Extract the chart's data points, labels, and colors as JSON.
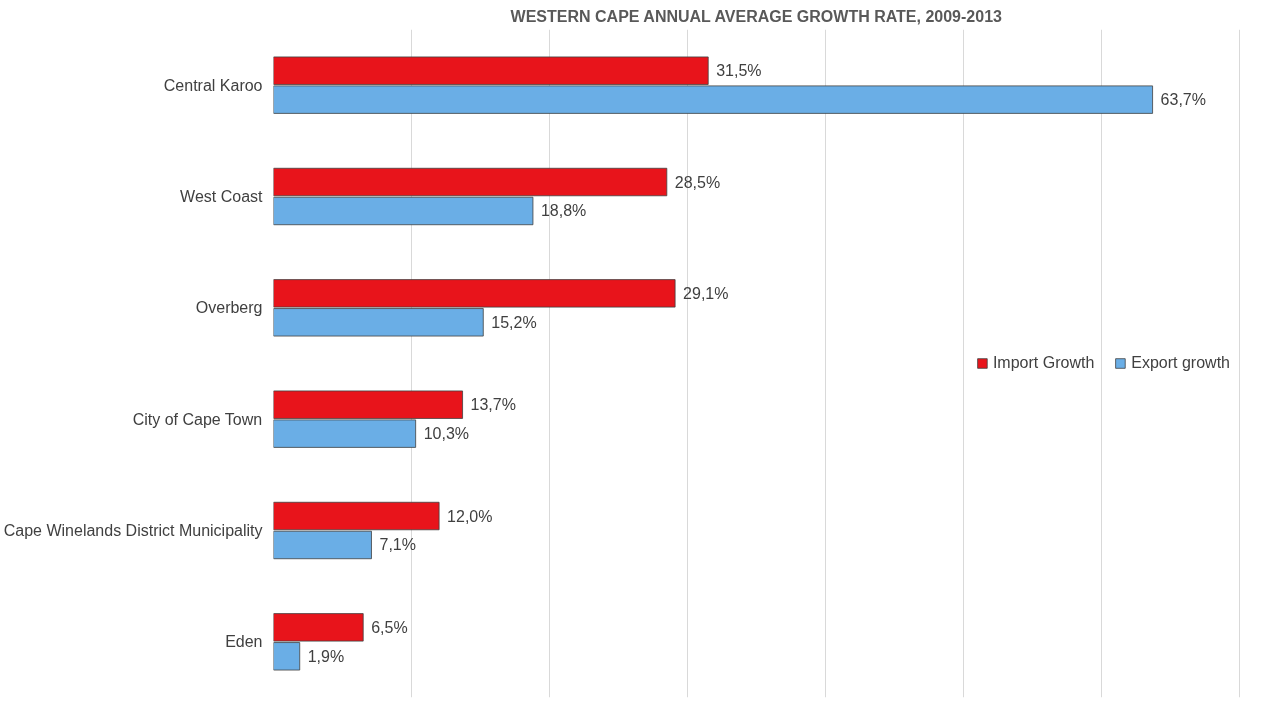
{
  "chart_data": {
    "type": "bar",
    "orientation": "horizontal",
    "title": "WESTERN CAPE ANNUAL AVERAGE GROWTH RATE, 2009-2013",
    "categories": [
      "Central Karoo",
      "West Coast",
      "Overberg",
      "City of Cape Town",
      "Cape Winelands District Municipality",
      "Eden"
    ],
    "series": [
      {
        "name": "Import Growth",
        "color": "#e8141b",
        "values": [
          31.5,
          28.5,
          29.1,
          13.7,
          12.0,
          6.5
        ],
        "value_labels": [
          "31,5%",
          "28,5%",
          "29,1%",
          "13,7%",
          "12,0%",
          "6,5%"
        ]
      },
      {
        "name": "Export growth",
        "color": "#6aaee6",
        "values": [
          63.7,
          18.8,
          15.2,
          10.3,
          7.1,
          1.9
        ],
        "value_labels": [
          "63,7%",
          "18,8%",
          "15,2%",
          "10,3%",
          "7,1%",
          "1,9%"
        ]
      }
    ],
    "tick_labels": "y",
    "grid": "x",
    "legend": "right"
  }
}
